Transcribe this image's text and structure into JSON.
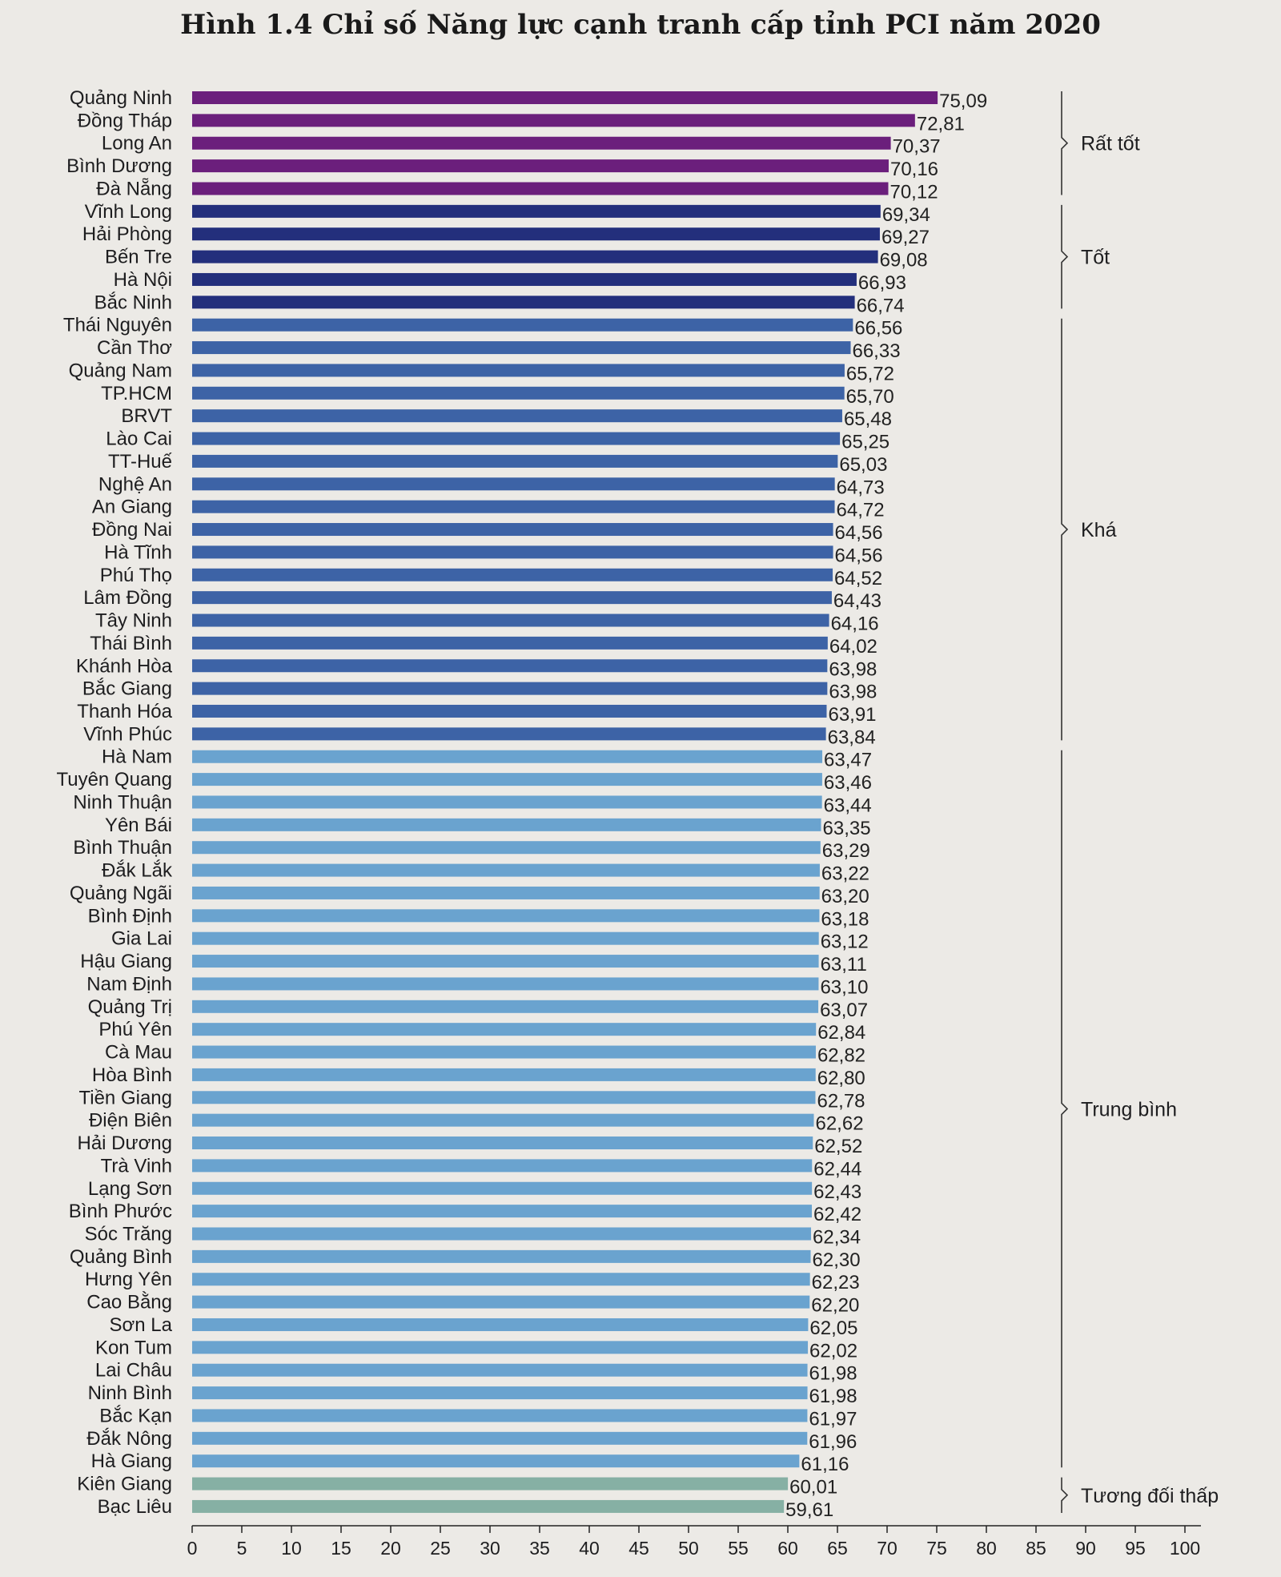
{
  "chart_data": {
    "type": "bar",
    "orientation": "horizontal",
    "title": "Hình 1.4 Chỉ số Năng lực cạnh tranh cấp tỉnh PCI năm 2020",
    "xlabel": "",
    "ylabel": "",
    "xlim": [
      0,
      100
    ],
    "xticks": [
      0,
      5,
      10,
      15,
      20,
      25,
      30,
      35,
      40,
      45,
      50,
      55,
      60,
      65,
      70,
      75,
      80,
      85,
      90,
      95,
      100
    ],
    "categories": [
      "Quảng Ninh",
      "Đồng Tháp",
      "Long An",
      "Bình Dương",
      "Đà Nẵng",
      "Vĩnh Long",
      "Hải Phòng",
      "Bến Tre",
      "Hà Nội",
      "Bắc Ninh",
      "Thái Nguyên",
      "Cần Thơ",
      "Quảng Nam",
      "TP.HCM",
      "BRVT",
      "Lào Cai",
      "TT-Huế",
      "Nghệ An",
      "An Giang",
      "Đồng Nai",
      "Hà Tĩnh",
      "Phú Thọ",
      "Lâm Đồng",
      "Tây Ninh",
      "Thái Bình",
      "Khánh Hòa",
      "Bắc Giang",
      "Thanh Hóa",
      "Vĩnh Phúc",
      "Hà Nam",
      "Tuyên Quang",
      "Ninh Thuận",
      "Yên Bái",
      "Bình Thuận",
      "Đắk Lắk",
      "Quảng Ngãi",
      "Bình Định",
      "Gia Lai",
      "Hậu Giang",
      "Nam Định",
      "Quảng Trị",
      "Phú Yên",
      "Cà Mau",
      "Hòa Bình",
      "Tiền Giang",
      "Điện Biên",
      "Hải Dương",
      "Trà Vinh",
      "Lạng Sơn",
      "Bình Phước",
      "Sóc Trăng",
      "Quảng Bình",
      "Hưng Yên",
      "Cao Bằng",
      "Sơn La",
      "Kon Tum",
      "Lai Châu",
      "Ninh Bình",
      "Bắc Kạn",
      "Đắk Nông",
      "Hà Giang",
      "Kiên Giang",
      "Bạc Liêu"
    ],
    "values": [
      75.09,
      72.81,
      70.37,
      70.16,
      70.12,
      69.34,
      69.27,
      69.08,
      66.93,
      66.74,
      66.56,
      66.33,
      65.72,
      65.7,
      65.48,
      65.25,
      65.03,
      64.73,
      64.72,
      64.56,
      64.56,
      64.52,
      64.43,
      64.16,
      64.02,
      63.98,
      63.98,
      63.91,
      63.84,
      63.47,
      63.46,
      63.44,
      63.35,
      63.29,
      63.22,
      63.2,
      63.18,
      63.12,
      63.11,
      63.1,
      63.07,
      62.84,
      62.82,
      62.8,
      62.78,
      62.62,
      62.52,
      62.44,
      62.43,
      62.42,
      62.34,
      62.3,
      62.23,
      62.2,
      62.05,
      62.02,
      61.98,
      61.98,
      61.97,
      61.96,
      61.16,
      60.01,
      59.61
    ],
    "value_labels": [
      "75,09",
      "72,81",
      "70,37",
      "70,16",
      "70,12",
      "69,34",
      "69,27",
      "69,08",
      "66,93",
      "66,74",
      "66,56",
      "66,33",
      "65,72",
      "65,70",
      "65,48",
      "65,25",
      "65,03",
      "64,73",
      "64,72",
      "64,56",
      "64,56",
      "64,52",
      "64,43",
      "64,16",
      "64,02",
      "63,98",
      "63,98",
      "63,91",
      "63,84",
      "63,47",
      "63,46",
      "63,44",
      "63,35",
      "63,29",
      "63,22",
      "63,20",
      "63,18",
      "63,12",
      "63,11",
      "63,10",
      "63,07",
      "62,84",
      "62,82",
      "62,80",
      "62,78",
      "62,62",
      "62,52",
      "62,44",
      "62,43",
      "62,42",
      "62,34",
      "62,30",
      "62,23",
      "62,20",
      "62,05",
      "62,02",
      "61,98",
      "61,98",
      "61,97",
      "61,96",
      "61,16",
      "60,01",
      "59,61"
    ],
    "groups": [
      {
        "name": "Rất tốt",
        "start": 0,
        "end": 4,
        "color": "#6b1f7c"
      },
      {
        "name": "Tốt",
        "start": 5,
        "end": 9,
        "color": "#232f7c"
      },
      {
        "name": "Khá",
        "start": 10,
        "end": 28,
        "color": "#3d63a6"
      },
      {
        "name": "Trung bình",
        "start": 29,
        "end": 60,
        "color": "#6aa3cf"
      },
      {
        "name": "Tương đối thấp",
        "start": 61,
        "end": 62,
        "color": "#86b0a4"
      }
    ]
  }
}
